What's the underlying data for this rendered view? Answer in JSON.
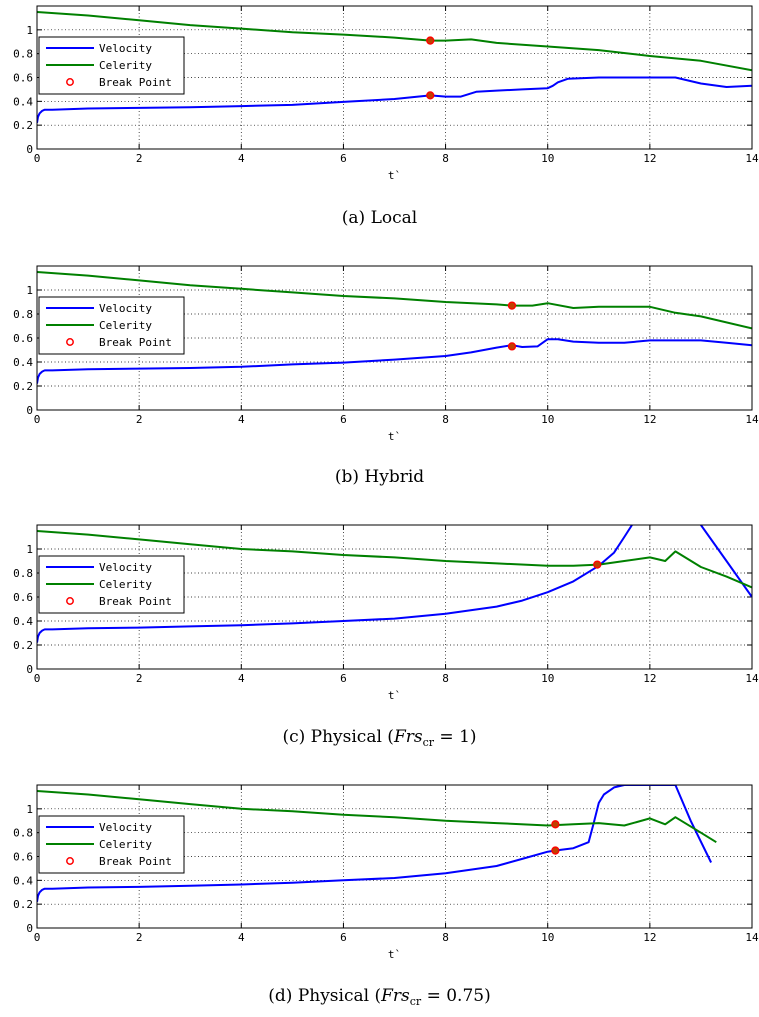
{
  "legend_labels": [
    "Velocity",
    "Celerity",
    "Break Point"
  ],
  "colors": {
    "velocity": "#0000ff",
    "celerity": "#008000",
    "break_stroke": "#ff0000",
    "break_fill": "#c04000",
    "grid": "#000000"
  },
  "chart_data": [
    {
      "type": "line",
      "xlabel": "t`",
      "xlim": [
        0,
        14
      ],
      "ylim": [
        0,
        1.2
      ],
      "xticks": [
        "0",
        "2",
        "4",
        "6",
        "8",
        "10",
        "12",
        "14"
      ],
      "yticks": [
        "0",
        "0.2",
        "0.4",
        "0.6",
        "0.8",
        "1"
      ],
      "grid": true,
      "legend_position": "left",
      "caption": {
        "prefix": "(a) Local",
        "frs": "",
        "frs_sub": "",
        "value": ""
      },
      "series": [
        {
          "name": "Velocity",
          "x": [
            0,
            0.02,
            0.05,
            0.1,
            0.15,
            0.3,
            1,
            2,
            3,
            4,
            5,
            6,
            7,
            7.7,
            8,
            8.3,
            8.6,
            9,
            9.5,
            10,
            10.1,
            10.2,
            10.4,
            11,
            12,
            12.5,
            13,
            13.5,
            14
          ],
          "y": [
            0.22,
            0.27,
            0.3,
            0.32,
            0.33,
            0.33,
            0.34,
            0.345,
            0.35,
            0.36,
            0.37,
            0.395,
            0.42,
            0.45,
            0.44,
            0.44,
            0.48,
            0.49,
            0.5,
            0.51,
            0.53,
            0.56,
            0.59,
            0.6,
            0.6,
            0.6,
            0.55,
            0.52,
            0.53
          ]
        },
        {
          "name": "Celerity",
          "x": [
            0,
            1,
            2,
            3,
            4,
            5,
            6,
            7,
            7.7,
            8,
            8.5,
            9,
            10,
            11,
            12,
            13,
            14
          ],
          "y": [
            1.15,
            1.12,
            1.08,
            1.04,
            1.01,
            0.98,
            0.96,
            0.935,
            0.91,
            0.91,
            0.92,
            0.89,
            0.86,
            0.83,
            0.78,
            0.74,
            0.66
          ]
        }
      ],
      "break_points": [
        {
          "x": 7.7,
          "y": 0.91
        },
        {
          "x": 7.7,
          "y": 0.45
        }
      ]
    },
    {
      "type": "line",
      "xlabel": "t`",
      "xlim": [
        0,
        14
      ],
      "ylim": [
        0,
        1.2
      ],
      "xticks": [
        "0",
        "2",
        "4",
        "6",
        "8",
        "10",
        "12",
        "14"
      ],
      "yticks": [
        "0",
        "0.2",
        "0.4",
        "0.6",
        "0.8",
        "1"
      ],
      "grid": true,
      "legend_position": "left",
      "caption": {
        "prefix": "(b) Hybrid",
        "frs": "",
        "frs_sub": "",
        "value": ""
      },
      "series": [
        {
          "name": "Velocity",
          "x": [
            0,
            0.02,
            0.05,
            0.1,
            0.15,
            0.3,
            1,
            2,
            3,
            4,
            5,
            6,
            7,
            8,
            8.5,
            9,
            9.3,
            9.5,
            9.8,
            10,
            10.2,
            10.5,
            11,
            11.5,
            12,
            12.5,
            13,
            13.5,
            14
          ],
          "y": [
            0.22,
            0.27,
            0.3,
            0.32,
            0.33,
            0.33,
            0.34,
            0.345,
            0.35,
            0.36,
            0.38,
            0.395,
            0.42,
            0.45,
            0.48,
            0.52,
            0.54,
            0.525,
            0.53,
            0.59,
            0.59,
            0.57,
            0.56,
            0.56,
            0.58,
            0.58,
            0.58,
            0.56,
            0.54
          ]
        },
        {
          "name": "Celerity",
          "x": [
            0,
            1,
            2,
            3,
            4,
            5,
            6,
            7,
            8,
            9,
            9.3,
            9.7,
            10,
            10.5,
            11,
            12,
            12.5,
            13,
            14
          ],
          "y": [
            1.15,
            1.12,
            1.08,
            1.04,
            1.01,
            0.98,
            0.95,
            0.93,
            0.9,
            0.88,
            0.87,
            0.87,
            0.89,
            0.85,
            0.86,
            0.86,
            0.81,
            0.78,
            0.68
          ]
        }
      ],
      "break_points": [
        {
          "x": 9.3,
          "y": 0.87
        },
        {
          "x": 9.3,
          "y": 0.53
        }
      ]
    },
    {
      "type": "line",
      "xlabel": "t`",
      "xlim": [
        0,
        14
      ],
      "ylim": [
        0,
        1.2
      ],
      "xticks": [
        "0",
        "2",
        "4",
        "6",
        "8",
        "10",
        "12",
        "14"
      ],
      "yticks": [
        "0",
        "0.2",
        "0.4",
        "0.6",
        "0.8",
        "1"
      ],
      "grid": true,
      "legend_position": "left",
      "caption": {
        "prefix": "(c) Physical (",
        "frs": "Fr",
        "frs_sub": "s",
        "value": " = 1)"
      },
      "series": [
        {
          "name": "Velocity",
          "x": [
            0,
            0.02,
            0.05,
            0.1,
            0.15,
            0.3,
            1,
            2,
            3,
            4,
            5,
            6,
            7,
            8,
            9,
            9.5,
            10,
            10.5,
            11,
            11.3,
            11.5,
            11.65,
            11.75,
            13.0,
            13.5,
            14.0
          ],
          "y": [
            0.22,
            0.27,
            0.3,
            0.32,
            0.33,
            0.33,
            0.34,
            0.345,
            0.355,
            0.365,
            0.38,
            0.4,
            0.42,
            0.46,
            0.52,
            0.57,
            0.64,
            0.73,
            0.86,
            0.97,
            1.1,
            1.2,
            null,
            1.2,
            0.9,
            0.6
          ]
        },
        {
          "name": "Celerity",
          "x": [
            0,
            1,
            2,
            3,
            4,
            5,
            6,
            7,
            8,
            9,
            10,
            10.5,
            11,
            11.5,
            12,
            12.3,
            12.5,
            13,
            13.5,
            14
          ],
          "y": [
            1.15,
            1.12,
            1.08,
            1.04,
            1.0,
            0.98,
            0.95,
            0.93,
            0.9,
            0.88,
            0.86,
            0.86,
            0.87,
            0.9,
            0.93,
            0.9,
            0.98,
            0.85,
            0.77,
            0.68
          ]
        }
      ],
      "break_points": [
        {
          "x": 10.97,
          "y": 0.87
        }
      ]
    },
    {
      "type": "line",
      "xlabel": "t`",
      "xlim": [
        0,
        14
      ],
      "ylim": [
        0,
        1.2
      ],
      "xticks": [
        "0",
        "2",
        "4",
        "6",
        "8",
        "10",
        "12",
        "14"
      ],
      "yticks": [
        "0",
        "0.2",
        "0.4",
        "0.6",
        "0.8",
        "1"
      ],
      "grid": true,
      "legend_position": "left",
      "caption": {
        "prefix": "(d) Physical (",
        "frs": "Fr",
        "frs_sub": "s",
        "value": " = 0.75)"
      },
      "series": [
        {
          "name": "Velocity",
          "x": [
            0,
            0.02,
            0.05,
            0.1,
            0.15,
            0.3,
            1,
            2,
            3,
            4,
            5,
            6,
            7,
            8,
            9,
            9.5,
            10,
            10.15,
            10.5,
            10.8,
            10.9,
            11.0,
            11.1,
            11.3,
            11.5,
            12.5,
            12.8,
            13.2
          ],
          "y": [
            0.22,
            0.27,
            0.3,
            0.32,
            0.33,
            0.33,
            0.34,
            0.345,
            0.355,
            0.365,
            0.38,
            0.4,
            0.42,
            0.46,
            0.52,
            0.58,
            0.64,
            0.65,
            0.67,
            0.72,
            0.88,
            1.05,
            1.12,
            1.18,
            1.2,
            1.2,
            0.9,
            0.55
          ]
        },
        {
          "name": "Celerity",
          "x": [
            0,
            1,
            2,
            3,
            4,
            5,
            6,
            7,
            8,
            9,
            10,
            10.5,
            11,
            11.5,
            12,
            12.3,
            12.5,
            13,
            13.3
          ],
          "y": [
            1.15,
            1.12,
            1.08,
            1.04,
            1.0,
            0.98,
            0.95,
            0.93,
            0.9,
            0.88,
            0.86,
            0.87,
            0.88,
            0.86,
            0.92,
            0.87,
            0.93,
            0.8,
            0.72
          ]
        }
      ],
      "break_points": [
        {
          "x": 10.15,
          "y": 0.87
        },
        {
          "x": 10.15,
          "y": 0.65
        }
      ]
    }
  ]
}
